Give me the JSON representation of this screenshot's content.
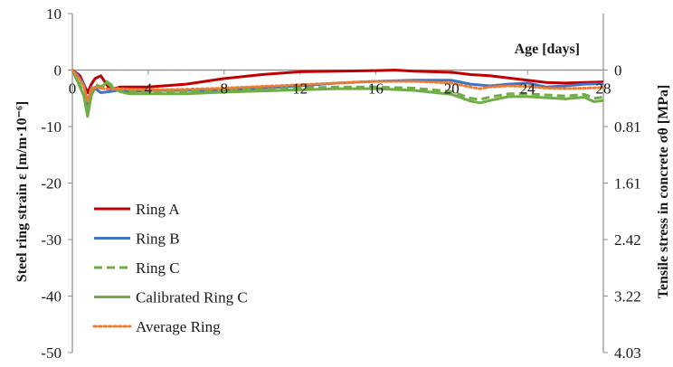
{
  "chart_data": {
    "type": "line",
    "xlabel": "Age [days]",
    "ylabel": "Steel ring strain   ε [m/m·10⁻⁶]",
    "y2label": "Tensile stress in concrete   σθ [MPa]",
    "xlim": [
      0,
      28
    ],
    "ylim": [
      -50,
      10
    ],
    "y2lim": [
      4.03,
      -0.805
    ],
    "x_ticks": [
      0,
      4,
      8,
      12,
      16,
      20,
      24,
      28
    ],
    "y_ticks": [
      10,
      0,
      -10,
      -20,
      -30,
      -40,
      -50
    ],
    "y2_ticks": [
      {
        "at": 0,
        "label": "0"
      },
      {
        "at": -10,
        "label": "0.81"
      },
      {
        "at": -20,
        "label": "1.61"
      },
      {
        "at": -30,
        "label": "2.42"
      },
      {
        "at": -40,
        "label": "3.22"
      },
      {
        "at": -50,
        "label": "4.03"
      }
    ],
    "grid": false,
    "legend_position": "bottom-left",
    "series": [
      {
        "name": "Ring A",
        "color": "#c00000",
        "dash": "solid",
        "x": [
          0,
          0.2,
          0.4,
          0.6,
          0.8,
          1.0,
          1.2,
          1.5,
          1.8,
          2.0,
          2.5,
          3,
          4,
          6,
          8,
          10,
          12,
          14,
          16,
          17,
          18,
          20,
          21,
          22,
          24,
          25,
          26,
          27,
          28
        ],
        "values": [
          0,
          -0.5,
          -1,
          -2.5,
          -4,
          -2.5,
          -1.5,
          -1,
          -2.5,
          -3.5,
          -3,
          -3,
          -3,
          -2.5,
          -1.5,
          -0.8,
          -0.3,
          -0.2,
          -0.1,
          0,
          -0.2,
          -0.4,
          -0.8,
          -1,
          -1.8,
          -2.2,
          -2.3,
          -2.2,
          -2.1
        ]
      },
      {
        "name": "Ring B",
        "color": "#4472c4",
        "dash": "solid",
        "x": [
          0,
          0.3,
          0.6,
          0.8,
          1.0,
          1.3,
          1.5,
          2.0,
          2.5,
          3,
          4,
          6,
          8,
          10,
          12,
          14,
          16,
          18,
          20,
          21,
          22,
          23,
          24,
          25,
          26,
          27,
          28
        ],
        "values": [
          0,
          -1,
          -2.5,
          -6,
          -3,
          -3.5,
          -4,
          -3.8,
          -3.5,
          -3.8,
          -3.6,
          -3.6,
          -3.6,
          -3.2,
          -2.8,
          -2.3,
          -2,
          -1.8,
          -1.8,
          -2.5,
          -2.8,
          -2.5,
          -2.3,
          -3,
          -2.8,
          -2.5,
          -2.4
        ]
      },
      {
        "name": "Ring C",
        "color": "#70ad47",
        "dash": "dashed",
        "x": [
          0,
          0.3,
          0.6,
          0.8,
          1.0,
          1.2,
          1.5,
          1.8,
          2.0,
          2.5,
          3,
          4,
          6,
          8,
          10,
          12,
          14,
          16,
          18,
          20,
          21,
          21.5,
          22,
          23,
          24,
          25,
          26,
          27,
          27.5,
          28
        ],
        "values": [
          0,
          -2,
          -4,
          -7.5,
          -4,
          -2.5,
          -3,
          -2,
          -2.5,
          -3.5,
          -3.8,
          -3.8,
          -3.8,
          -3.6,
          -3.4,
          -3.2,
          -3,
          -3,
          -3.2,
          -3.8,
          -5,
          -5.2,
          -4.8,
          -4.2,
          -4.2,
          -4.4,
          -4.6,
          -4.3,
          -5,
          -4.8
        ]
      },
      {
        "name": "Calibrated Ring C",
        "color": "#70ad47",
        "dash": "solid",
        "x": [
          0,
          0.3,
          0.6,
          0.8,
          1.0,
          1.2,
          1.5,
          1.8,
          2.0,
          2.5,
          3,
          4,
          6,
          8,
          10,
          12,
          14,
          16,
          18,
          20,
          21,
          21.5,
          22,
          23,
          24,
          25,
          26,
          27,
          27.5,
          28
        ],
        "values": [
          0,
          -2.2,
          -4.5,
          -8.2,
          -4.5,
          -3,
          -3.2,
          -2.2,
          -2.8,
          -3.8,
          -4.2,
          -4.2,
          -4.2,
          -3.9,
          -3.7,
          -3.5,
          -3.3,
          -3.3,
          -3.6,
          -4.3,
          -5.5,
          -5.8,
          -5.4,
          -4.7,
          -4.7,
          -4.9,
          -5.1,
          -4.8,
          -5.6,
          -5.4
        ]
      },
      {
        "name": "Average Ring",
        "color": "#ed7d31",
        "dash": "dotted",
        "x": [
          0,
          0.3,
          0.6,
          0.8,
          1.0,
          1.3,
          1.5,
          2.0,
          2.5,
          3,
          4,
          6,
          8,
          10,
          12,
          14,
          16,
          18,
          20,
          21,
          21.5,
          22,
          23,
          24,
          25,
          26,
          27,
          28
        ],
        "values": [
          0,
          -1.2,
          -2.8,
          -5.5,
          -3.2,
          -3,
          -3.2,
          -3.4,
          -3.3,
          -3.4,
          -3.5,
          -3.4,
          -3.2,
          -2.9,
          -2.6,
          -2.3,
          -2,
          -2,
          -2.3,
          -3,
          -3.3,
          -3,
          -2.8,
          -2.9,
          -3.2,
          -3.3,
          -3.2,
          -3.1
        ]
      }
    ]
  }
}
